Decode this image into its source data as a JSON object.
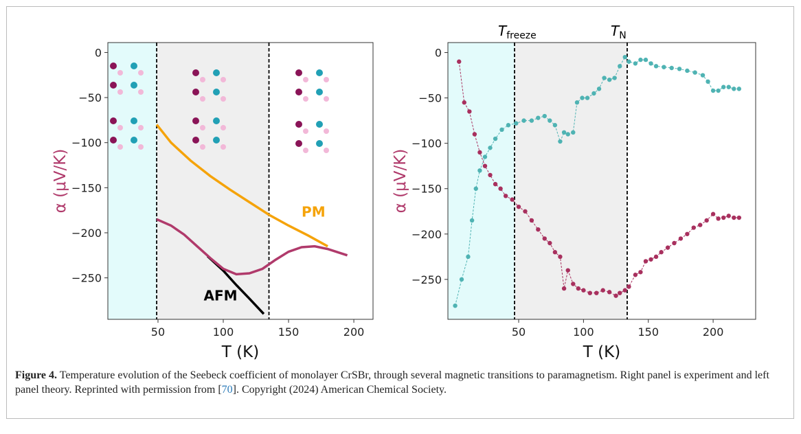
{
  "chart_data": [
    {
      "type": "line",
      "y_label": "α (μV/K)",
      "x_label": "T (K)",
      "xlim": [
        11.6,
        214.7
      ],
      "ylim": [
        -296,
        11
      ],
      "xticks": [
        50,
        100,
        150,
        200
      ],
      "yticks": [
        0,
        {
          "value": -50,
          "label": "−50"
        },
        {
          "value": -100,
          "label": "−100"
        },
        {
          "value": -150,
          "label": "−150"
        },
        {
          "value": -200,
          "label": "−200"
        },
        {
          "value": -250,
          "label": "−250"
        }
      ],
      "vlines": [
        49,
        135
      ],
      "shading": [
        "#e3fbfb",
        "#efefef"
      ],
      "series": [
        {
          "name": "PM",
          "color": "#f5a30a",
          "x": [
            49,
            60,
            75,
            90,
            105,
            120,
            135,
            150,
            165,
            180
          ],
          "values": [
            -80,
            -100,
            -120,
            -137,
            -152,
            -166,
            -180,
            -192,
            -203,
            -215
          ]
        },
        {
          "name": "AFM",
          "color": "#000000",
          "x": [
            88,
            100,
            110,
            120,
            131
          ],
          "values": [
            -226,
            -242,
            -258,
            -273,
            -290
          ]
        },
        {
          "color": "#b03a6b",
          "x": [
            49,
            60,
            70,
            80,
            90,
            100,
            110,
            120,
            130,
            140,
            150,
            160,
            170,
            180,
            195
          ],
          "values": [
            -185,
            -192,
            -202,
            -215,
            -228,
            -240,
            -246,
            -245,
            -240,
            -230,
            -221,
            -216,
            -215,
            -218,
            -225
          ]
        }
      ]
    },
    {
      "type": "line",
      "y_label": "α (μV/K)",
      "x_label": "T (K)",
      "xlim": [
        -4.6,
        232.8
      ],
      "ylim": [
        -294,
        11
      ],
      "xticks": [
        50,
        100,
        150,
        200
      ],
      "yticks": [
        0,
        {
          "value": -50,
          "label": "−50"
        },
        {
          "value": -100,
          "label": "−100"
        },
        {
          "value": -150,
          "label": "−150"
        },
        {
          "value": -200,
          "label": "−200"
        },
        {
          "value": -250,
          "label": "−250"
        }
      ],
      "vlines": [
        46.8,
        133.7
      ],
      "shading": [
        "#e3fbfb",
        "#efefef"
      ],
      "vline_labels": [
        {
          "symbol": "T",
          "subscript": "freeze"
        },
        {
          "symbol": "T",
          "subscript": "N"
        }
      ],
      "markers": true,
      "series": [
        {
          "color": "#4fb3b3",
          "x": [
            1,
            6,
            11,
            14,
            17,
            20,
            24,
            28,
            32,
            37,
            42,
            48,
            54,
            60,
            65,
            70,
            74,
            78,
            82,
            85,
            88,
            92,
            95,
            99,
            103,
            108,
            112,
            116,
            120,
            124,
            128,
            132,
            135,
            140,
            144,
            148,
            152,
            156,
            162,
            168,
            174,
            180,
            186,
            192,
            196,
            200,
            204,
            208,
            212,
            216,
            220
          ],
          "values": [
            -279,
            -250,
            -225,
            -185,
            -150,
            -130,
            -115,
            -105,
            -95,
            -85,
            -80,
            -78,
            -75,
            -75,
            -72,
            -70,
            -75,
            -80,
            -98,
            -88,
            -90,
            -88,
            -55,
            -50,
            -50,
            -45,
            -40,
            -28,
            -30,
            -28,
            -15,
            -5,
            -10,
            -12,
            -8,
            -8,
            -12,
            -15,
            -16,
            -17,
            -18,
            -20,
            -22,
            -25,
            -32,
            -42,
            -42,
            -38,
            -38,
            -40,
            -40
          ]
        },
        {
          "color": "#a8305e",
          "x": [
            4,
            8,
            12,
            16,
            20,
            24,
            28,
            32,
            36,
            40,
            45,
            50,
            55,
            60,
            65,
            70,
            74,
            78,
            82,
            85,
            88,
            92,
            96,
            100,
            105,
            110,
            115,
            120,
            125,
            128,
            132,
            135,
            140,
            144,
            148,
            152,
            156,
            160,
            165,
            170,
            175,
            180,
            185,
            190,
            195,
            200,
            204,
            208,
            212,
            216,
            220
          ],
          "values": [
            -10,
            -55,
            -65,
            -90,
            -110,
            -125,
            -135,
            -145,
            -150,
            -158,
            -162,
            -170,
            -175,
            -185,
            -195,
            -205,
            -210,
            -220,
            -225,
            -260,
            -240,
            -255,
            -260,
            -262,
            -265,
            -265,
            -262,
            -264,
            -268,
            -265,
            -262,
            -258,
            -245,
            -242,
            -230,
            -228,
            -225,
            -220,
            -215,
            -210,
            -205,
            -200,
            -193,
            -190,
            -185,
            -178,
            -183,
            -182,
            -180,
            -182,
            -182
          ]
        }
      ]
    }
  ],
  "caption": {
    "label": "Figure 4.",
    "text_before": " Temperature evolution of the Seebeck coefficient of monolayer CrSBr, through several magnetic transitions to paramagnetism. Right panel is experiment and left panel theory. Reprinted with permission from [",
    "ref": "70",
    "text_after": "]. Copyright (2024) American Chemical Society."
  },
  "annotations": [
    {
      "text": "PM",
      "chart": 0,
      "x": 160,
      "y": -182,
      "color": "#f5a30a"
    },
    {
      "text": "AFM",
      "chart": 0,
      "x": 85,
      "y": -275,
      "color": "#000000"
    }
  ]
}
